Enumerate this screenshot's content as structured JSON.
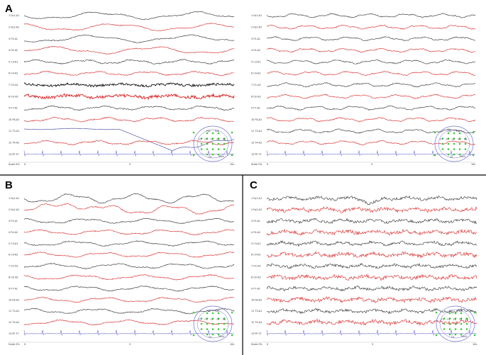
{
  "colors": {
    "black_trace": "#2b2b2b",
    "red_trace": "#d62020",
    "blue_trace": "#3a3aa0",
    "light_blue_trace": "#6f6fd0",
    "electrode_green": "#3cc83c",
    "divider": "#000000"
  },
  "panels": [
    {
      "id": "A-left",
      "letter": "A",
      "channels": [
        "1 Fp1-A1",
        "2 Fp2-A2",
        "3 F3-A1",
        "4 F4-A2",
        "5 C3-A1",
        "6 C4-A2",
        "7 O1-A1",
        "8 O2-A2",
        "9 F7-A1",
        "10 F8-A2",
        "11 T3-A1",
        "12 T4-A2",
        "13 PF-F7"
      ],
      "axis": {
        "start": "0",
        "mid": "5",
        "end": "10s",
        "scale": "Scale 0%"
      },
      "map": {
        "top_left": "Fp1",
        "top_right": "Fp2",
        "row2": [
          "F7",
          "F3",
          "Fz",
          "F4",
          "F8"
        ],
        "bottom": "O1",
        "bottom_right": "30uV"
      }
    },
    {
      "id": "A-right",
      "letter": "",
      "channels": [
        "1 Fp1-A1",
        "2 Fp2-A2",
        "3 F3-A1",
        "4 F4-A2",
        "5 C3-A1",
        "6 C4-A2",
        "7 O1-A1",
        "8 O2-A2",
        "9 F7-A1",
        "10 F8-A2",
        "11 T3-A1",
        "12 T4-A2",
        "13 PF-F7"
      ],
      "axis": {
        "start": "0",
        "mid": "5",
        "end": "10s",
        "scale": "Scale 0%"
      },
      "map": {
        "top_left": "Fp1",
        "top_right": "Fp2",
        "row2": [
          "F7",
          "F3",
          "Fz",
          "F4",
          "F8"
        ],
        "bottom": "O1",
        "bottom_right": "30uV"
      }
    },
    {
      "id": "B",
      "letter": "B",
      "channels": [
        "1 Fp1-A1",
        "2 Fp2-A2",
        "3 F3-A1",
        "4 F4-A2",
        "5 C3-A1",
        "6 C4-A2",
        "7 O1-A1",
        "8 O2-A2",
        "9 F7-A1",
        "10 F8-A2",
        "11 T3-A1",
        "12 T4-A2",
        "13 PF-F7"
      ],
      "axis": {
        "start": "0",
        "mid": "5",
        "end": "10s",
        "scale": "Scale 0%"
      },
      "map": {
        "top_left": "Fp1",
        "top_right": "Fp2",
        "row2": [
          "F7",
          "F3",
          "Fz",
          "F4",
          "F8"
        ],
        "bottom": "O1",
        "bottom_right": "30uV"
      }
    },
    {
      "id": "C",
      "letter": "C",
      "channels": [
        "1 Fp1-A1",
        "2 Fp2-A2",
        "3 F3-A1",
        "4 F4-A2",
        "5 C3-A1",
        "6 C4-A2",
        "7 O1-A1",
        "8 O2-A2",
        "9 F7-A1",
        "10 F8-A2",
        "11 T3-A1",
        "12 T4-A2",
        "13 PF-F7"
      ],
      "axis": {
        "start": "0",
        "mid": "5",
        "end": "10s",
        "scale": "Scale 0%"
      },
      "map": {
        "top_left": "Fp1",
        "top_right": "Fp2",
        "row2": [
          "F7",
          "F3",
          "Fz",
          "F4",
          "F8"
        ],
        "bottom": "O1",
        "bottom_right": "30uV"
      }
    }
  ]
}
